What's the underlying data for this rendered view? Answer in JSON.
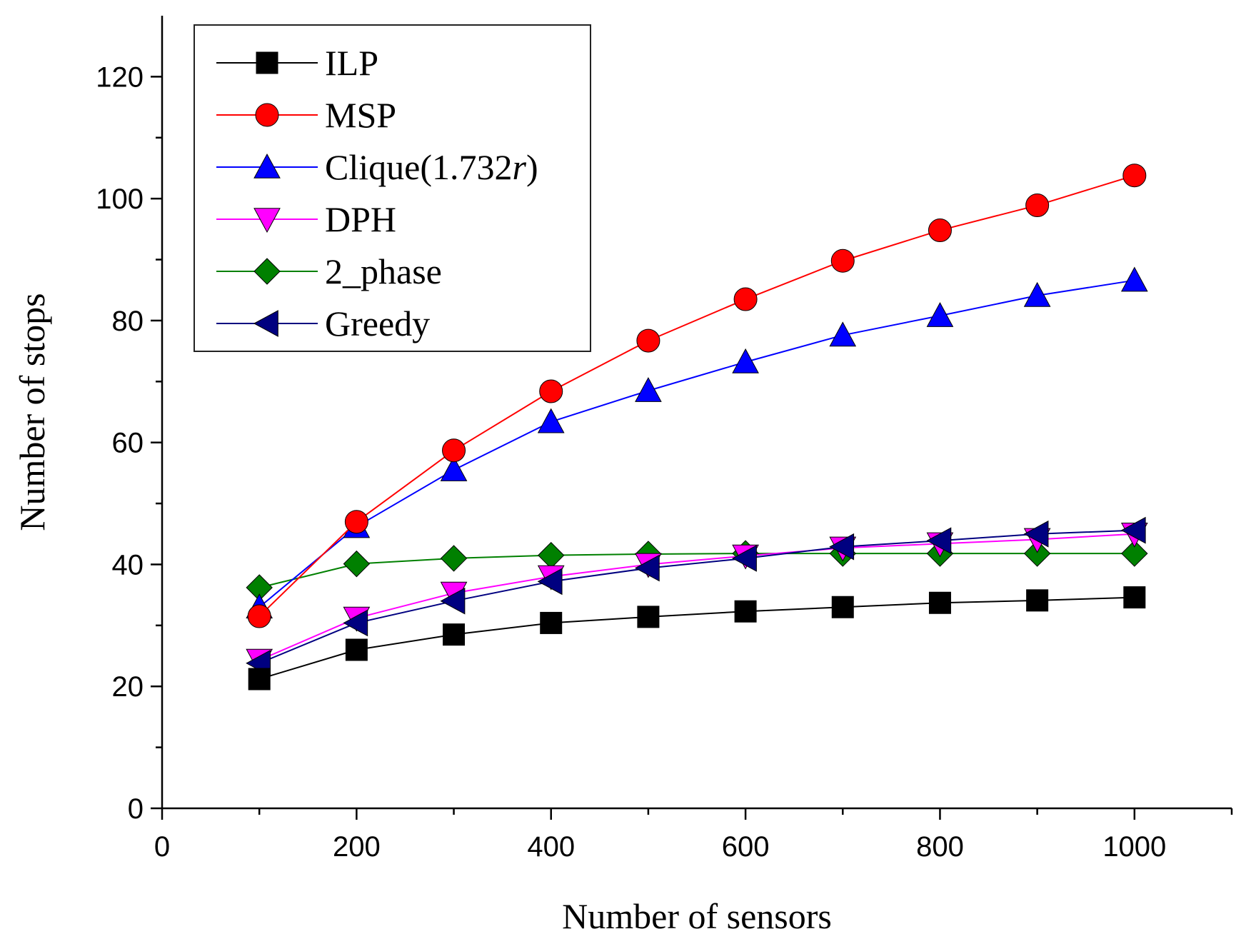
{
  "chart_data": {
    "type": "line",
    "title": "",
    "xlabel": "Number of sensors",
    "ylabel": "Number of stops",
    "xlim": [
      0,
      1100
    ],
    "ylim": [
      0,
      130
    ],
    "xticks": [
      0,
      200,
      400,
      600,
      800,
      1000
    ],
    "yticks": [
      0,
      20,
      40,
      60,
      80,
      100,
      120
    ],
    "grid": false,
    "legend_position": "top-left",
    "x": [
      100,
      200,
      300,
      400,
      500,
      600,
      700,
      800,
      900,
      1000
    ],
    "series": [
      {
        "name": "ILP",
        "legend_main": "ILP",
        "legend_italic": "",
        "legend_suffix": "",
        "color": "#000000",
        "marker": "square",
        "values": [
          21.2,
          26,
          28.5,
          30.4,
          31.4,
          32.3,
          33,
          33.7,
          34.1,
          34.6
        ]
      },
      {
        "name": "MSP",
        "legend_main": "MSP",
        "legend_italic": "",
        "legend_suffix": "",
        "color": "#ff0000",
        "marker": "circle",
        "values": [
          31.5,
          47,
          58.7,
          68.4,
          76.7,
          83.5,
          89.8,
          94.8,
          98.9,
          103.8
        ]
      },
      {
        "name": "Clique(1.732r)",
        "legend_main": "Clique(1.732",
        "legend_italic": "r",
        "legend_suffix": ")",
        "color": "#0000ff",
        "marker": "triangle-up",
        "values": [
          33,
          46.2,
          55.5,
          63.4,
          68.5,
          73.2,
          77.6,
          80.8,
          84.1,
          86.6
        ]
      },
      {
        "name": "DPH",
        "legend_main": "DPH",
        "legend_italic": "",
        "legend_suffix": "",
        "color": "#ff00ff",
        "marker": "triangle-down",
        "values": [
          24.3,
          31.2,
          35.3,
          38,
          40,
          41.4,
          42.7,
          43.4,
          44.1,
          45
        ]
      },
      {
        "name": "2_phase",
        "legend_main": "2_phase",
        "legend_italic": "",
        "legend_suffix": "",
        "color": "#008000",
        "marker": "diamond",
        "values": [
          36.2,
          40.1,
          41,
          41.5,
          41.7,
          41.8,
          41.8,
          41.8,
          41.8,
          41.8
        ]
      },
      {
        "name": "Greedy",
        "legend_main": "Greedy",
        "legend_italic": "",
        "legend_suffix": "",
        "color": "#000080",
        "marker": "triangle-left",
        "values": [
          23.8,
          30.4,
          34,
          37.2,
          39.4,
          41,
          42.9,
          43.9,
          45,
          45.6
        ]
      }
    ]
  }
}
